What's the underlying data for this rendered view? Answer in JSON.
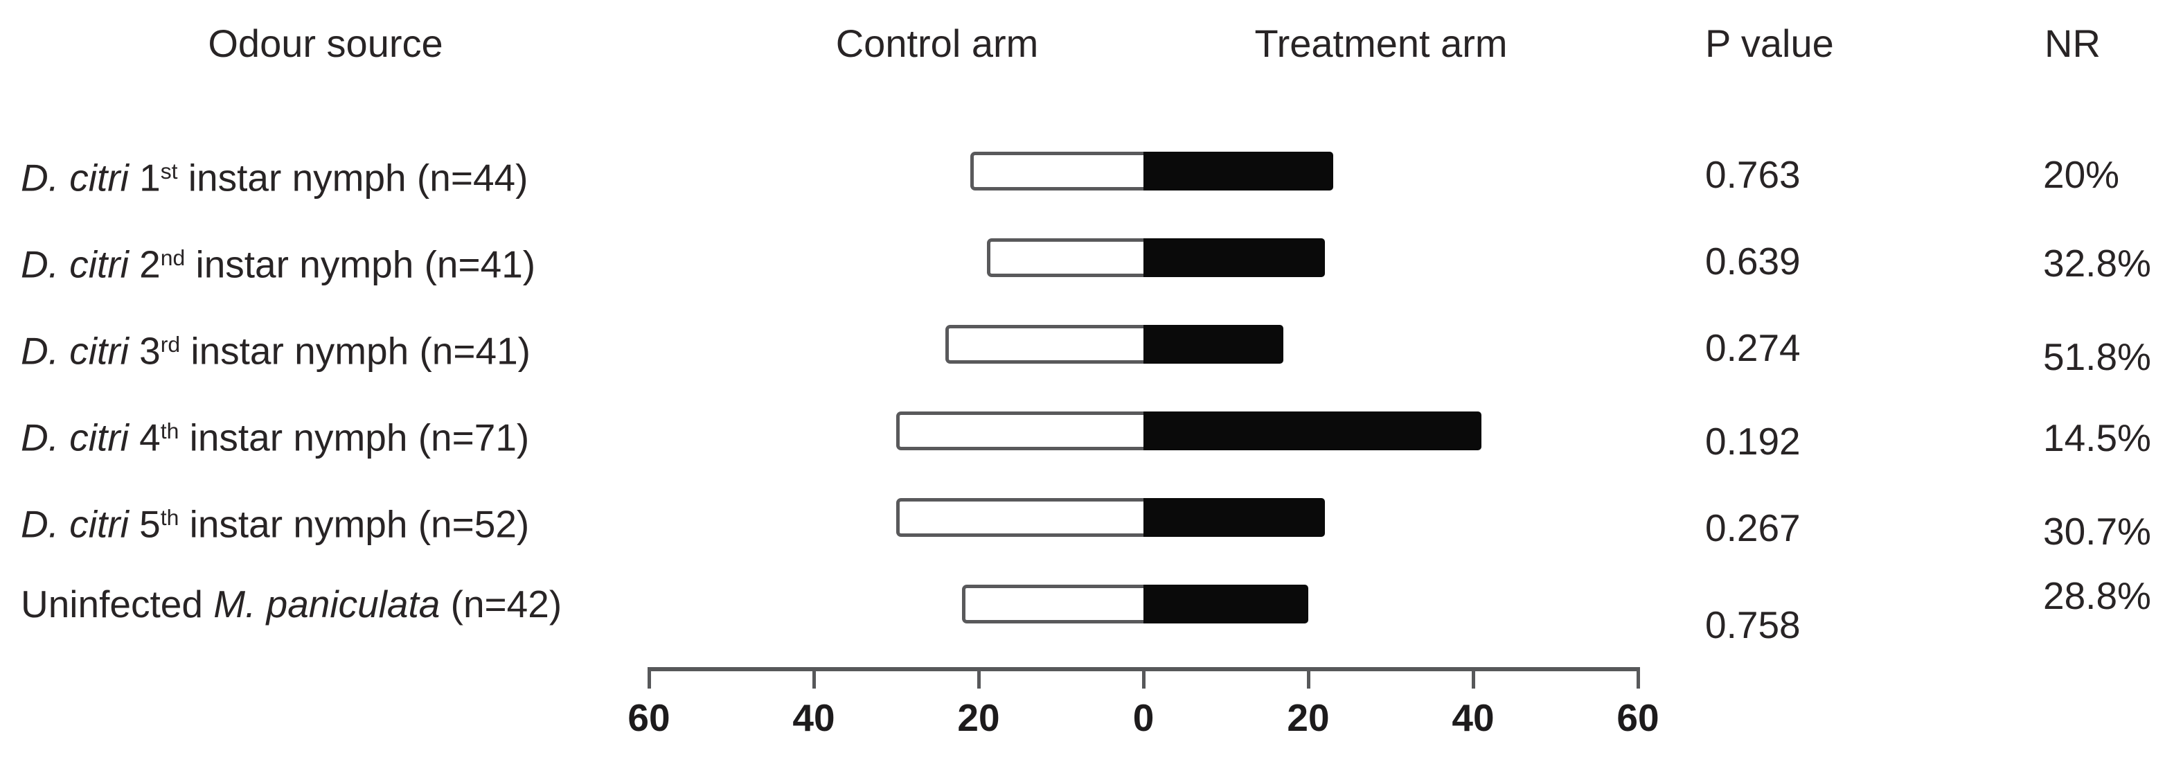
{
  "header": {
    "odour_source": "Odour source",
    "control_arm": "Control arm",
    "treatment_arm": "Treatment arm",
    "p_value": "P value",
    "nr": "NR"
  },
  "chart_data": {
    "type": "bar",
    "subtype": "diverging-horizontal-paired",
    "legend_position": "column-headers",
    "grid": false,
    "x_axis": {
      "tick_labels": [
        "60",
        "40",
        "20",
        "0",
        "20",
        "40",
        "60"
      ],
      "tick_values": [
        -60,
        -40,
        -20,
        0,
        20,
        40,
        60
      ],
      "range": [
        -60,
        60
      ]
    },
    "series_names": [
      "Control arm",
      "Treatment arm"
    ],
    "rows": [
      {
        "label": "D. citri 1st instar nymph (n=44)",
        "label_parts": [
          {
            "t": "D. citri",
            "i": true
          },
          {
            "t": " 1"
          },
          {
            "t": "st",
            "sup": true
          },
          {
            "t": " instar nymph (n=44)"
          }
        ],
        "n": 44,
        "control": 21,
        "treatment": 23,
        "p_value": "0.763",
        "nr": "20%"
      },
      {
        "label": "D. citri 2nd instar nymph (n=41)",
        "label_parts": [
          {
            "t": "D. citri",
            "i": true
          },
          {
            "t": " 2"
          },
          {
            "t": "nd",
            "sup": true
          },
          {
            "t": " instar nymph (n=41)"
          }
        ],
        "n": 41,
        "control": 19,
        "treatment": 22,
        "p_value": "0.639",
        "nr": "32.8%"
      },
      {
        "label": "D. citri 3rd instar nymph (n=41)",
        "label_parts": [
          {
            "t": "D. citri",
            "i": true
          },
          {
            "t": " 3"
          },
          {
            "t": "rd",
            "sup": true
          },
          {
            "t": " instar nymph (n=41)"
          }
        ],
        "n": 41,
        "control": 24,
        "treatment": 17,
        "p_value": "0.274",
        "nr": "51.8%"
      },
      {
        "label": "D. citri 4th instar nymph (n=71)",
        "label_parts": [
          {
            "t": "D. citri",
            "i": true
          },
          {
            "t": " 4"
          },
          {
            "t": "th",
            "sup": true
          },
          {
            "t": " instar nymph (n=71)"
          }
        ],
        "n": 71,
        "control": 30,
        "treatment": 41,
        "p_value": "0.192",
        "nr": "14.5%"
      },
      {
        "label": "D. citri 5th instar nymph (n=52)",
        "label_parts": [
          {
            "t": "D. citri",
            "i": true
          },
          {
            "t": " 5"
          },
          {
            "t": "th",
            "sup": true
          },
          {
            "t": " instar nymph (n=52)"
          }
        ],
        "n": 52,
        "control": 30,
        "treatment": 22,
        "p_value": "0.267",
        "nr": "30.7%"
      },
      {
        "label": "Uninfected M. paniculata (n=42)",
        "label_parts": [
          {
            "t": "Uninfected "
          },
          {
            "t": "M. paniculata",
            "i": true
          },
          {
            "t": " (n=42)"
          }
        ],
        "n": 42,
        "control": 22,
        "treatment": 20,
        "p_value": "0.758",
        "nr": "28.8%"
      }
    ],
    "colors": {
      "control_fill": "#ffffff",
      "control_outline": "#59595b",
      "treatment_fill": "#0a0a0a",
      "axis": "#57585a",
      "text": "#282425"
    }
  }
}
